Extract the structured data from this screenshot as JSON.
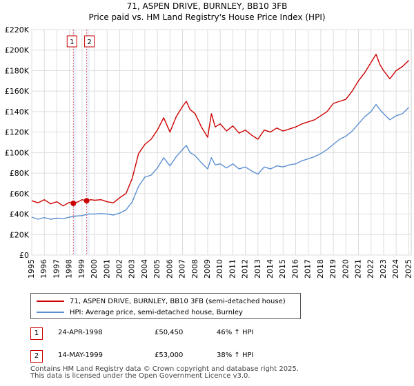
{
  "chart_data": {
    "type": "line",
    "title": "71, ASPEN DRIVE, BURNLEY, BB10 3FB",
    "subtitle": "Price paid vs. HM Land Registry's House Price Index (HPI)",
    "xlabel": "",
    "ylabel": "",
    "xlim": [
      1995,
      2025.2
    ],
    "ylim": [
      0,
      220000
    ],
    "y_ticks": [
      0,
      20000,
      40000,
      60000,
      80000,
      100000,
      120000,
      140000,
      160000,
      180000,
      200000,
      220000
    ],
    "y_tick_labels": [
      "£0",
      "£20K",
      "£40K",
      "£60K",
      "£80K",
      "£100K",
      "£120K",
      "£140K",
      "£160K",
      "£180K",
      "£200K",
      "£220K"
    ],
    "x_ticks": [
      1995,
      1996,
      1997,
      1998,
      1999,
      2000,
      2001,
      2002,
      2003,
      2004,
      2005,
      2006,
      2007,
      2008,
      2009,
      2010,
      2011,
      2012,
      2013,
      2014,
      2015,
      2016,
      2017,
      2018,
      2019,
      2020,
      2021,
      2022,
      2023,
      2024,
      2025
    ],
    "x_tick_labels": [
      "1995",
      "1996",
      "1997",
      "1998",
      "1999",
      "2000",
      "2001",
      "2002",
      "2003",
      "2004",
      "2005",
      "2006",
      "2007",
      "2008",
      "2009",
      "2010",
      "2011",
      "2012",
      "2013",
      "2014",
      "2015",
      "2016",
      "2017",
      "2018",
      "2019",
      "2020",
      "2021",
      "2022",
      "2023",
      "2024",
      "2025"
    ],
    "grid": true,
    "series": [
      {
        "name": "71, ASPEN DRIVE, BURNLEY, BB10 3FB (semi-detached house)",
        "color": "#cc0000",
        "x": [
          1995.0,
          1995.5,
          1996.0,
          1996.5,
          1997.0,
          1997.5,
          1998.0,
          1998.3,
          1998.7,
          1999.0,
          1999.37,
          1999.7,
          2000.0,
          2000.5,
          2001.0,
          2001.5,
          2002.0,
          2002.5,
          2003.0,
          2003.5,
          2004.0,
          2004.5,
          2005.0,
          2005.5,
          2006.0,
          2006.5,
          2007.0,
          2007.3,
          2007.6,
          2008.0,
          2008.5,
          2009.0,
          2009.3,
          2009.6,
          2010.0,
          2010.5,
          2011.0,
          2011.5,
          2012.0,
          2012.5,
          2013.0,
          2013.5,
          2014.0,
          2014.5,
          2015.0,
          2015.5,
          2016.0,
          2016.5,
          2017.0,
          2017.5,
          2018.0,
          2018.5,
          2019.0,
          2019.5,
          2020.0,
          2020.5,
          2021.0,
          2021.5,
          2022.0,
          2022.4,
          2022.7,
          2023.0,
          2023.5,
          2024.0,
          2024.5,
          2025.0
        ],
        "y": [
          53000,
          51000,
          54000,
          50000,
          52000,
          48000,
          51500,
          50450,
          52000,
          54000,
          53000,
          54000,
          53500,
          54000,
          52000,
          51000,
          56000,
          60000,
          75000,
          99000,
          108000,
          113000,
          122000,
          134000,
          120000,
          135000,
          145000,
          150000,
          142000,
          138000,
          125000,
          115000,
          138000,
          125000,
          128000,
          121000,
          126000,
          119000,
          122000,
          117000,
          113000,
          122000,
          120000,
          124000,
          121000,
          123000,
          125000,
          128000,
          130000,
          132000,
          136000,
          140000,
          148000,
          150000,
          152000,
          160000,
          170000,
          178000,
          188000,
          196000,
          186000,
          180000,
          172000,
          180000,
          184000,
          190000
        ]
      },
      {
        "name": "HPI: Average price, semi-detached house, Burnley",
        "color": "#5b8fcf",
        "x": [
          1995.0,
          1995.5,
          1996.0,
          1996.5,
          1997.0,
          1997.5,
          1998.0,
          1998.5,
          1999.0,
          1999.5,
          2000.0,
          2000.5,
          2001.0,
          2001.5,
          2002.0,
          2002.5,
          2003.0,
          2003.5,
          2004.0,
          2004.5,
          2005.0,
          2005.5,
          2006.0,
          2006.5,
          2007.0,
          2007.3,
          2007.6,
          2008.0,
          2008.5,
          2009.0,
          2009.3,
          2009.6,
          2010.0,
          2010.5,
          2011.0,
          2011.5,
          2012.0,
          2012.5,
          2013.0,
          2013.5,
          2014.0,
          2014.5,
          2015.0,
          2015.5,
          2016.0,
          2016.5,
          2017.0,
          2017.5,
          2018.0,
          2018.5,
          2019.0,
          2019.5,
          2020.0,
          2020.5,
          2021.0,
          2021.5,
          2022.0,
          2022.4,
          2022.7,
          2023.0,
          2023.5,
          2024.0,
          2024.5,
          2025.0
        ],
        "y": [
          37000,
          35000,
          36500,
          35000,
          36000,
          35500,
          37000,
          38000,
          38500,
          40000,
          40000,
          40500,
          40000,
          39000,
          41000,
          44000,
          52000,
          67000,
          76000,
          78000,
          85000,
          95000,
          87000,
          96000,
          103000,
          107000,
          100000,
          97000,
          90000,
          84000,
          95000,
          88000,
          89000,
          85000,
          89000,
          84000,
          86000,
          82000,
          79000,
          86000,
          84000,
          87000,
          86000,
          88000,
          89000,
          92000,
          94000,
          96000,
          99000,
          103000,
          108000,
          113000,
          116000,
          121000,
          128000,
          135000,
          140000,
          147000,
          142000,
          138000,
          132000,
          136000,
          138000,
          144000
        ]
      }
    ],
    "sales": [
      {
        "label": "1",
        "x": 1998.31,
        "y": 50450
      },
      {
        "label": "2",
        "x": 1999.37,
        "y": 53000
      }
    ]
  },
  "legend": {
    "entries": [
      {
        "label": "71, ASPEN DRIVE, BURNLEY, BB10 3FB (semi-detached house)",
        "color": "#cc0000"
      },
      {
        "label": "HPI: Average price, semi-detached house, Burnley",
        "color": "#5b8fcf"
      }
    ]
  },
  "annotations": [
    {
      "num": "1",
      "date": "24-APR-1998",
      "price": "£50,450",
      "hpi": "46% ↑ HPI"
    },
    {
      "num": "2",
      "date": "14-MAY-1999",
      "price": "£53,000",
      "hpi": "38% ↑ HPI"
    }
  ],
  "footer": {
    "line1": "Contains HM Land Registry data © Crown copyright and database right 2025.",
    "line2": "This data is licensed under the Open Government Licence v3.0."
  }
}
